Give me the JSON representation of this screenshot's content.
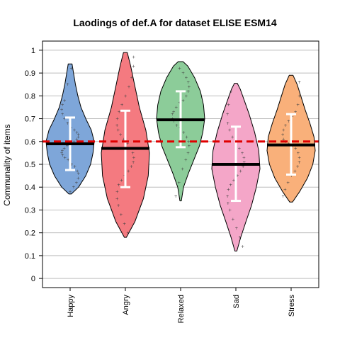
{
  "chart_data": {
    "type": "violin",
    "title": "Laodings of def.A for dataset ELISE ESM14",
    "xlabel": "",
    "ylabel": "Communality of items",
    "ylim": [
      -0.04,
      1.04
    ],
    "yticks": [
      0,
      0.1,
      0.2,
      0.3,
      0.4,
      0.5,
      0.6,
      0.7,
      0.8,
      0.9,
      1
    ],
    "ytick_labels": [
      "0",
      "0.1",
      "0.2",
      "0.3",
      "0.4",
      "0.5",
      "0.6",
      "0.7",
      "0.8",
      "0.9",
      "1"
    ],
    "grid": true,
    "reference_line": {
      "y": 0.6,
      "color": "#e00000",
      "style": "dashed"
    },
    "categories": [
      "Happy",
      "Angry",
      "Relaxed",
      "Sad",
      "Stress"
    ],
    "series": [
      {
        "category": "Happy",
        "color": "#7ea6d9",
        "mean": 0.59,
        "sd_low": 0.475,
        "sd_high": 0.705,
        "min": 0.37,
        "max": 0.94,
        "density": [
          [
            0.37,
            0.05
          ],
          [
            0.4,
            0.35
          ],
          [
            0.45,
            0.65
          ],
          [
            0.5,
            0.85
          ],
          [
            0.55,
            0.95
          ],
          [
            0.6,
            1.0
          ],
          [
            0.65,
            0.88
          ],
          [
            0.7,
            0.65
          ],
          [
            0.75,
            0.45
          ],
          [
            0.8,
            0.32
          ],
          [
            0.85,
            0.22
          ],
          [
            0.9,
            0.14
          ],
          [
            0.94,
            0.08
          ]
        ],
        "points": [
          0.38,
          0.4,
          0.42,
          0.44,
          0.46,
          0.47,
          0.49,
          0.5,
          0.52,
          0.53,
          0.54,
          0.55,
          0.56,
          0.57,
          0.58,
          0.59,
          0.6,
          0.61,
          0.62,
          0.63,
          0.64,
          0.65,
          0.66,
          0.68,
          0.7,
          0.72,
          0.74,
          0.76,
          0.78,
          0.85,
          0.92
        ]
      },
      {
        "category": "Angry",
        "color": "#f47a80",
        "mean": 0.57,
        "sd_low": 0.4,
        "sd_high": 0.735,
        "min": 0.18,
        "max": 0.99,
        "density": [
          [
            0.18,
            0.04
          ],
          [
            0.25,
            0.4
          ],
          [
            0.35,
            0.75
          ],
          [
            0.45,
            0.95
          ],
          [
            0.55,
            1.0
          ],
          [
            0.65,
            0.85
          ],
          [
            0.75,
            0.58
          ],
          [
            0.85,
            0.38
          ],
          [
            0.93,
            0.22
          ],
          [
            0.99,
            0.08
          ]
        ],
        "points": [
          0.2,
          0.24,
          0.28,
          0.32,
          0.35,
          0.38,
          0.41,
          0.43,
          0.45,
          0.47,
          0.49,
          0.51,
          0.53,
          0.55,
          0.57,
          0.59,
          0.61,
          0.63,
          0.65,
          0.67,
          0.7,
          0.73,
          0.76,
          0.8,
          0.84,
          0.88,
          0.93,
          0.97
        ]
      },
      {
        "category": "Relaxed",
        "color": "#8ccc99",
        "mean": 0.695,
        "sd_low": 0.575,
        "sd_high": 0.82,
        "min": 0.34,
        "max": 0.95,
        "density": [
          [
            0.34,
            0.03
          ],
          [
            0.4,
            0.12
          ],
          [
            0.46,
            0.32
          ],
          [
            0.52,
            0.55
          ],
          [
            0.58,
            0.78
          ],
          [
            0.64,
            0.92
          ],
          [
            0.7,
            1.0
          ],
          [
            0.76,
            0.95
          ],
          [
            0.82,
            0.82
          ],
          [
            0.88,
            0.58
          ],
          [
            0.93,
            0.3
          ],
          [
            0.95,
            0.1
          ]
        ],
        "points": [
          0.36,
          0.42,
          0.48,
          0.52,
          0.55,
          0.58,
          0.6,
          0.62,
          0.64,
          0.66,
          0.67,
          0.69,
          0.7,
          0.72,
          0.73,
          0.75,
          0.77,
          0.78,
          0.8,
          0.82,
          0.84,
          0.86,
          0.88,
          0.9,
          0.92
        ]
      },
      {
        "category": "Sad",
        "color": "#f4a6c8",
        "mean": 0.5,
        "sd_low": 0.34,
        "sd_high": 0.665,
        "min": 0.12,
        "max": 0.855,
        "density": [
          [
            0.12,
            0.04
          ],
          [
            0.18,
            0.2
          ],
          [
            0.25,
            0.42
          ],
          [
            0.32,
            0.65
          ],
          [
            0.4,
            0.85
          ],
          [
            0.48,
            1.0
          ],
          [
            0.56,
            0.95
          ],
          [
            0.64,
            0.78
          ],
          [
            0.72,
            0.55
          ],
          [
            0.78,
            0.35
          ],
          [
            0.83,
            0.18
          ],
          [
            0.855,
            0.06
          ]
        ],
        "points": [
          0.14,
          0.18,
          0.22,
          0.26,
          0.3,
          0.33,
          0.36,
          0.39,
          0.41,
          0.43,
          0.45,
          0.47,
          0.49,
          0.51,
          0.53,
          0.55,
          0.57,
          0.6,
          0.62,
          0.65,
          0.68,
          0.72,
          0.76,
          0.82
        ]
      },
      {
        "category": "Stress",
        "color": "#f9b07a",
        "mean": 0.585,
        "sd_low": 0.455,
        "sd_high": 0.72,
        "min": 0.335,
        "max": 0.89,
        "density": [
          [
            0.335,
            0.06
          ],
          [
            0.38,
            0.35
          ],
          [
            0.44,
            0.68
          ],
          [
            0.5,
            0.9
          ],
          [
            0.56,
            1.0
          ],
          [
            0.62,
            0.95
          ],
          [
            0.68,
            0.78
          ],
          [
            0.74,
            0.58
          ],
          [
            0.8,
            0.4
          ],
          [
            0.85,
            0.25
          ],
          [
            0.89,
            0.08
          ]
        ],
        "points": [
          0.36,
          0.39,
          0.42,
          0.45,
          0.47,
          0.49,
          0.51,
          0.53,
          0.55,
          0.57,
          0.58,
          0.59,
          0.6,
          0.61,
          0.63,
          0.65,
          0.67,
          0.69,
          0.71,
          0.73,
          0.76,
          0.8,
          0.86
        ]
      }
    ]
  }
}
